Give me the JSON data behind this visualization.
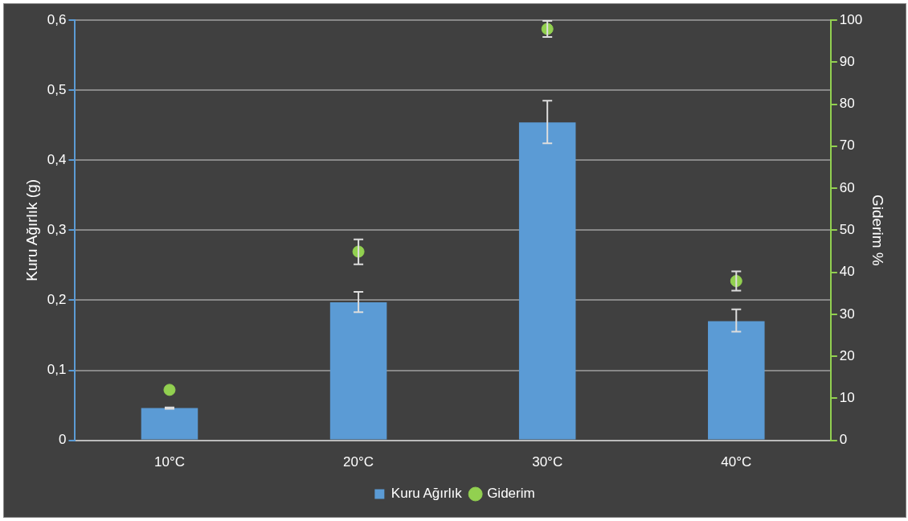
{
  "chart_data": {
    "type": "bar",
    "ylabel": "Kuru Ağırlık (g)",
    "y2label": "Giderim %",
    "categories": [
      "10°C",
      "20°C",
      "30°C",
      "40°C"
    ],
    "series": [
      {
        "name": "Kuru Ağırlık",
        "color": "#5b9bd5",
        "values": [
          0.046,
          0.197,
          0.454,
          0.17
        ],
        "errors": [
          [
            0.045,
            0.047
          ],
          [
            0.183,
            0.212
          ],
          [
            0.424,
            0.485
          ],
          [
            0.155,
            0.187
          ]
        ]
      },
      {
        "name": "Giderim",
        "type": "scatter",
        "axis": "y2",
        "color": "#92d050",
        "marker": "circle",
        "x": [
          "10°C",
          "20°C",
          "30°C",
          "40°C"
        ],
        "values": [
          12.0,
          44.9,
          97.9,
          37.9
        ],
        "errors": [
          null,
          [
            41.9,
            47.8
          ],
          [
            96.0,
            99.8
          ],
          [
            35.6,
            40.2
          ]
        ]
      }
    ],
    "ylim": [
      0,
      0.6
    ],
    "yticks": [
      0,
      {
        "value": 0.1,
        "label": "0,1"
      },
      {
        "value": 0.2,
        "label": "0,2"
      },
      {
        "value": 0.3,
        "label": "0,3"
      },
      {
        "value": 0.4,
        "label": "0,4"
      },
      {
        "value": 0.5,
        "label": "0,5"
      },
      {
        "value": 0.6,
        "label": "0,6"
      }
    ],
    "y2lim": [
      0,
      100
    ],
    "y2ticks": [
      0,
      10,
      20,
      30,
      40,
      50,
      60,
      70,
      80,
      90,
      100
    ],
    "grid": "y",
    "legend": "bottom"
  }
}
